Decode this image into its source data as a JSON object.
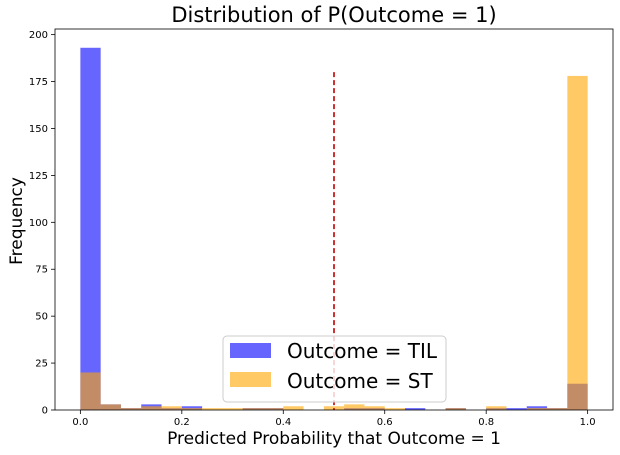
{
  "chart_data": {
    "type": "bar",
    "title": "Distribution of P(Outcome = 1)",
    "xlabel": "Predicted Probability that Outcome = 1",
    "ylabel": "Frequency",
    "xlim": [
      -0.05,
      1.05
    ],
    "ylim": [
      0,
      203
    ],
    "xticks": [
      "0.0",
      "0.2",
      "0.4",
      "0.6",
      "0.8",
      "1.0"
    ],
    "yticks": [
      "0",
      "25",
      "50",
      "75",
      "100",
      "125",
      "150",
      "175",
      "200"
    ],
    "bin_width": 0.04,
    "bin_starts": [
      0.0,
      0.04,
      0.08,
      0.12,
      0.16,
      0.2,
      0.24,
      0.28,
      0.32,
      0.36,
      0.4,
      0.44,
      0.48,
      0.52,
      0.56,
      0.6,
      0.64,
      0.68,
      0.72,
      0.76,
      0.8,
      0.84,
      0.88,
      0.92,
      0.96
    ],
    "series": [
      {
        "name": "Outcome = TIL",
        "color": "#0000ff",
        "opacity": 0.6,
        "values": [
          193,
          3,
          1,
          3,
          1,
          2,
          0,
          0,
          1,
          1,
          0,
          0,
          0,
          1,
          1,
          0,
          1,
          0,
          1,
          0,
          1,
          1,
          2,
          1,
          14
        ]
      },
      {
        "name": "Outcome = ST",
        "color": "#ffa500",
        "opacity": 0.6,
        "values": [
          20,
          3,
          1,
          2,
          2,
          1,
          1,
          1,
          1,
          1,
          2,
          0,
          2,
          3,
          2,
          1,
          0,
          0,
          1,
          0,
          2,
          0,
          1,
          1,
          178
        ]
      }
    ],
    "threshold": {
      "x": 0.5,
      "y_top": 180,
      "color": "#c00000",
      "style": "dashed"
    },
    "legend_position": "lower-center",
    "grid": false
  }
}
